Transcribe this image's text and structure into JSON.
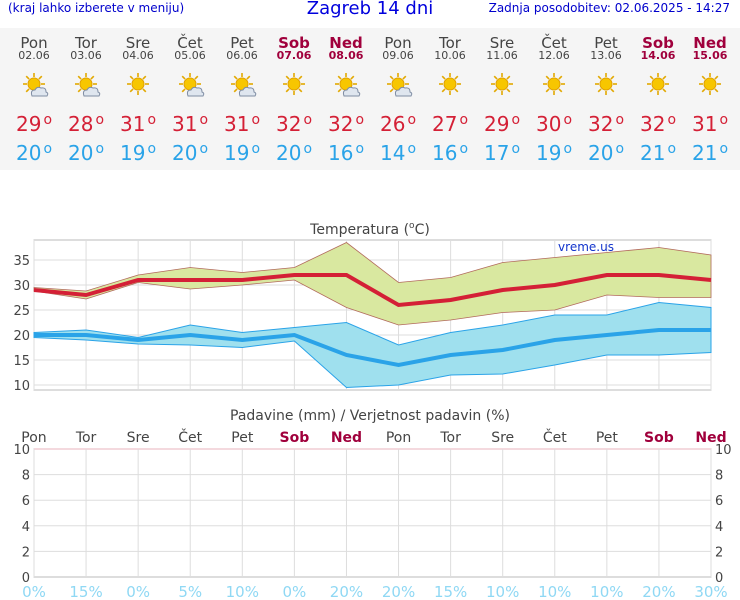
{
  "header": {
    "hint": "(kraj lahko izberete v meniju)",
    "title": "Zagreb 14 dni",
    "updated": "Zadnja posodobitev: 02.06.2025 - 14:27"
  },
  "colors": {
    "max": "#d42036",
    "min": "#2aa3e8",
    "weekend": "#a0003c",
    "max_band": "#d9e8a0",
    "min_band": "#9fe0ee",
    "precip_pct": "#8fd8f4"
  },
  "days": [
    {
      "name": "Pon",
      "date": "02.06",
      "icon": "partly-cloudy-icon",
      "max": "29",
      "min": "20",
      "weekend": false,
      "rain_pct": "0%"
    },
    {
      "name": "Tor",
      "date": "03.06",
      "icon": "partly-cloudy-icon",
      "max": "28",
      "min": "20",
      "weekend": false,
      "rain_pct": "15%"
    },
    {
      "name": "Sre",
      "date": "04.06",
      "icon": "sun-icon",
      "max": "31",
      "min": "19",
      "weekend": false,
      "rain_pct": "0%"
    },
    {
      "name": "Čet",
      "date": "05.06",
      "icon": "partly-cloudy-icon",
      "max": "31",
      "min": "20",
      "weekend": false,
      "rain_pct": "5%"
    },
    {
      "name": "Pet",
      "date": "06.06",
      "icon": "partly-cloudy-icon",
      "max": "31",
      "min": "19",
      "weekend": false,
      "rain_pct": "10%"
    },
    {
      "name": "Sob",
      "date": "07.06",
      "icon": "sun-icon",
      "max": "32",
      "min": "20",
      "weekend": true,
      "rain_pct": "0%"
    },
    {
      "name": "Ned",
      "date": "08.06",
      "icon": "partly-cloudy-icon",
      "max": "32",
      "min": "16",
      "weekend": true,
      "rain_pct": "20%"
    },
    {
      "name": "Pon",
      "date": "09.06",
      "icon": "partly-cloudy-icon",
      "max": "26",
      "min": "14",
      "weekend": false,
      "rain_pct": "20%"
    },
    {
      "name": "Tor",
      "date": "10.06",
      "icon": "sun-icon",
      "max": "27",
      "min": "16",
      "weekend": false,
      "rain_pct": "15%"
    },
    {
      "name": "Sre",
      "date": "11.06",
      "icon": "sun-icon",
      "max": "29",
      "min": "17",
      "weekend": false,
      "rain_pct": "10%"
    },
    {
      "name": "Čet",
      "date": "12.06",
      "icon": "sun-icon",
      "max": "30",
      "min": "19",
      "weekend": false,
      "rain_pct": "10%"
    },
    {
      "name": "Pet",
      "date": "13.06",
      "icon": "sun-icon",
      "max": "32",
      "min": "20",
      "weekend": false,
      "rain_pct": "10%"
    },
    {
      "name": "Sob",
      "date": "14.06",
      "icon": "sun-icon",
      "max": "32",
      "min": "21",
      "weekend": true,
      "rain_pct": "20%"
    },
    {
      "name": "Ned",
      "date": "15.06",
      "icon": "sun-icon",
      "max": "31",
      "min": "21",
      "weekend": true,
      "rain_pct": "30%"
    }
  ],
  "chart_data": [
    {
      "type": "line",
      "title": "Temperatura (oC)",
      "watermark": "vreme.us",
      "x": [
        "Pon",
        "Tor",
        "Sre",
        "Čet",
        "Pet",
        "Sob",
        "Ned",
        "Pon",
        "Tor",
        "Sre",
        "Čet",
        "Pet",
        "Sob",
        "Ned"
      ],
      "yticks": [
        "10",
        "15",
        "20",
        "25",
        "30",
        "35"
      ],
      "ylim": [
        9,
        39
      ],
      "grid": true,
      "series": [
        {
          "values": [
            29,
            28,
            31,
            31,
            31,
            32,
            32,
            26,
            27,
            29,
            30,
            32,
            32,
            31
          ]
        },
        {
          "values": [
            20,
            20,
            19,
            20,
            19,
            20,
            16,
            14,
            16,
            17,
            19,
            20,
            21,
            21
          ]
        }
      ],
      "bands": [
        {
          "upper": [
            29.5,
            28.8,
            32,
            33.5,
            32.5,
            33.5,
            38.5,
            30.5,
            31.5,
            34.5,
            35.5,
            36.5,
            37.5,
            36
          ],
          "lower": [
            28.8,
            27.2,
            30.5,
            29.2,
            30,
            31,
            25.5,
            22,
            23,
            24.5,
            25,
            28,
            27.5,
            27.5
          ]
        },
        {
          "upper": [
            20.5,
            21,
            19.5,
            22,
            20.5,
            21.5,
            22.5,
            18,
            20.5,
            22,
            24,
            24,
            26.5,
            25.5
          ],
          "lower": [
            19.5,
            19,
            18.2,
            18,
            17.5,
            18.8,
            9.5,
            10,
            12,
            12.2,
            14,
            16,
            16,
            16.5
          ]
        }
      ]
    },
    {
      "type": "bar",
      "title": "Padavine (mm) / Verjetnost padavin (%)",
      "categories": [
        "Pon",
        "Tor",
        "Sre",
        "Čet",
        "Pet",
        "Sob",
        "Ned",
        "Pon",
        "Tor",
        "Sre",
        "Čet",
        "Pet",
        "Sob",
        "Ned"
      ],
      "precip_mm": [
        0,
        0,
        0,
        0,
        0,
        0,
        0,
        0,
        0,
        0,
        0,
        0,
        0,
        0
      ],
      "probability_pct": [
        0,
        15,
        0,
        5,
        10,
        0,
        20,
        20,
        15,
        10,
        10,
        10,
        20,
        30
      ],
      "yticks": [
        "0",
        "2",
        "4",
        "6",
        "8",
        "10"
      ],
      "ylim": [
        0,
        10
      ],
      "grid": true
    }
  ]
}
